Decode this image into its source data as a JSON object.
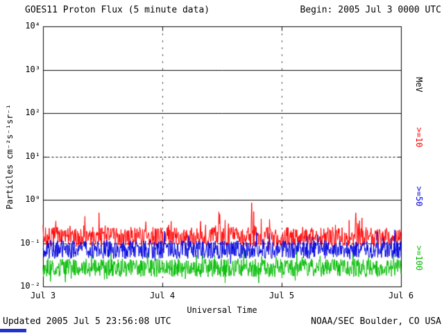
{
  "header": {
    "title": "GOES11 Proton Flux (5 minute data)",
    "begin": "Begin: 2005 Jul 3 0000 UTC"
  },
  "footer": {
    "updated": "Updated 2005 Jul  5 23:56:08 UTC",
    "source": "NOAA/SEC Boulder, CO USA"
  },
  "chart_data": {
    "type": "line",
    "title": "GOES11 Proton Flux (5 minute data)",
    "xlabel": "Universal Time",
    "ylabel": "Particles  cm⁻²s⁻¹sr⁻¹",
    "right_axis_title": "MeV",
    "x_tick_labels": [
      "Jul 3",
      "Jul 4",
      "Jul 5",
      "Jul 6"
    ],
    "y_tick_labels": [
      "10⁴",
      "10³",
      "10²",
      "10¹",
      "10⁰",
      "10⁻¹",
      "10⁻²"
    ],
    "ylim_log10": [
      -2,
      4
    ],
    "x_range_days": 3,
    "points_per_day": 288,
    "grid": {
      "solid_log10": [
        3,
        2,
        0
      ],
      "dashed_log10": [
        1,
        -1
      ],
      "vertical_dashed_days": [
        1,
        2
      ]
    },
    "legend_position": "right-rotated",
    "series": [
      {
        "label": ">=10",
        "color": "#ff0000",
        "units": "MeV",
        "typical_flux": 0.12,
        "base_log10": -1.08,
        "range_log10": 0.45,
        "burst_prob": 0.07,
        "burst_extra_log10": 0.5,
        "dip_prob": 0.03,
        "dip_extra_log10": 0.15,
        "seed": 7,
        "notable_spikes": [
          {
            "day": 0.35,
            "log10": -0.38
          },
          {
            "day": 1.48,
            "log10": -0.33
          },
          {
            "day": 1.75,
            "log10": -0.07
          },
          {
            "day": 2.62,
            "log10": -0.3
          }
        ]
      },
      {
        "label": ">=50",
        "color": "#0000dd",
        "units": "MeV",
        "typical_flux": 0.07,
        "base_log10": -1.36,
        "range_log10": 0.42,
        "burst_prob": 0.05,
        "burst_extra_log10": 0.35,
        "dip_prob": 0.03,
        "dip_extra_log10": 0.18,
        "seed": 11,
        "notable_spikes": [
          {
            "day": 1.02,
            "log10": -0.72
          },
          {
            "day": 2.3,
            "log10": -0.8
          }
        ]
      },
      {
        "label": ">=100",
        "color": "#00bb00",
        "units": "MeV",
        "typical_flux": 0.027,
        "base_log10": -1.78,
        "range_log10": 0.42,
        "burst_prob": 0.03,
        "burst_extra_log10": 0.25,
        "dip_prob": 0.05,
        "dip_extra_log10": 0.2,
        "seed": 13,
        "notable_spikes": []
      }
    ]
  }
}
